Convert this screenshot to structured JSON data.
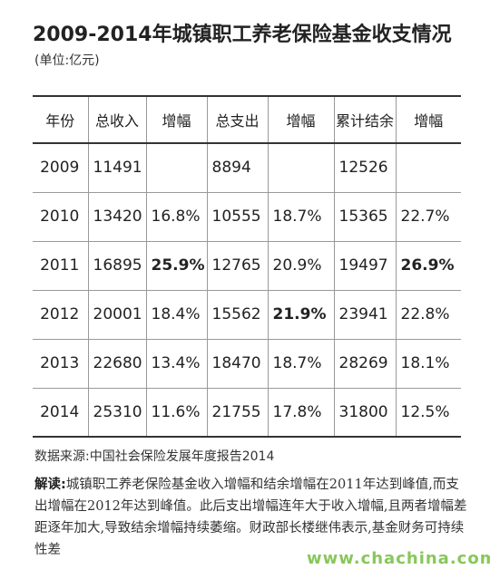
{
  "title": "2009-2014年城镇职工养老保险基金收支情况",
  "unit": "(单位:亿元)",
  "table": {
    "headers": [
      "年份",
      "总收入",
      "增幅",
      "总支出",
      "增幅",
      "累计结余",
      "增幅"
    ],
    "rows": [
      [
        "2009",
        "11491",
        "",
        "8894",
        "",
        "12526",
        ""
      ],
      [
        "2010",
        "13420",
        "16.8%",
        "10555",
        "18.7%",
        "15365",
        "22.7%"
      ],
      [
        "2011",
        "16895",
        "25.9%",
        "12765",
        "20.9%",
        "19497",
        "26.9%"
      ],
      [
        "2012",
        "20001",
        "18.4%",
        "15562",
        "21.9%",
        "23941",
        "22.8%"
      ],
      [
        "2013",
        "22680",
        "13.4%",
        "18470",
        "18.7%",
        "28269",
        "18.1%"
      ],
      [
        "2014",
        "25310",
        "11.6%",
        "21755",
        "17.8%",
        "31800",
        "12.5%"
      ]
    ]
  },
  "source": "数据来源:中国社会保险发展年度报告2014",
  "note": {
    "lead": "解读:",
    "text": "城镇职工养老保险基金收入增幅和结余增幅在2011年达到峰值,而支出增幅在2012年达到峰值。此后支出增幅连年大于收入增幅,且两者增幅差距逐年加大,导致结余增幅持续萎缩。财政部长楼继伟表示,基金财务可持续性差"
  },
  "watermark": "www.chachina.com"
}
